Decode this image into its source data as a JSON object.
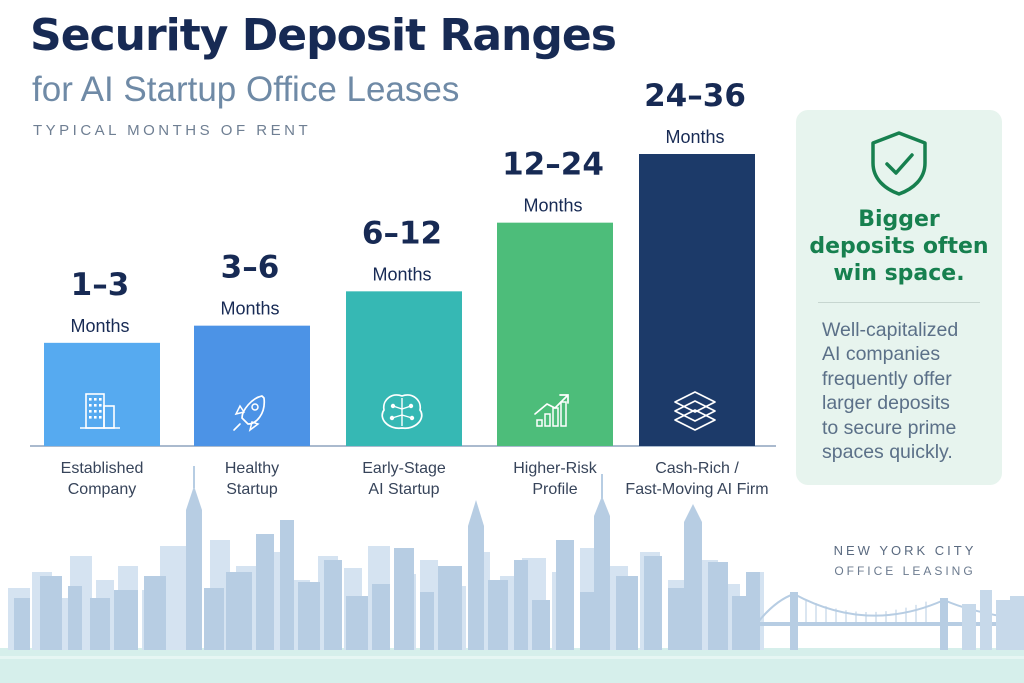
{
  "header": {
    "title": "Security Deposit Ranges",
    "subtitle": "for AI Startup Office Leases",
    "eyebrow": "TYPICAL MONTHS OF RENT"
  },
  "chart_data": {
    "type": "bar",
    "categories": [
      "Established Company",
      "Healthy Startup",
      "Early-Stage AI Startup",
      "Higher-Risk Profile",
      "Cash-Rich / Fast-Moving AI Firm"
    ],
    "category_lines": [
      [
        "Established",
        "Company"
      ],
      [
        "Healthy",
        "Startup"
      ],
      [
        "Early-Stage",
        "AI Startup"
      ],
      [
        "Higher-Risk",
        "Profile"
      ],
      [
        "Cash-Rich /",
        "Fast-Moving AI Firm"
      ]
    ],
    "range_labels": [
      "1–3",
      "3–6",
      "6–12",
      "12–24",
      "24–36"
    ],
    "unit_label": "Months",
    "ranges": [
      [
        1,
        3
      ],
      [
        3,
        6
      ],
      [
        6,
        12
      ],
      [
        12,
        24
      ],
      [
        24,
        36
      ]
    ],
    "colors": [
      "#56aaf0",
      "#4c93e6",
      "#36b8b4",
      "#4dbd7a",
      "#1c3a69"
    ],
    "icons": [
      "office-building-icon",
      "rocket-icon",
      "brain-circuit-icon",
      "growth-chart-icon",
      "stacked-layers-icon"
    ],
    "grid": false,
    "legend": "none"
  },
  "callout": {
    "icon": "shield-check-icon",
    "headline_lines": [
      "Bigger",
      "deposits often",
      "win space."
    ],
    "body_lines": [
      "Well-capitalized",
      "AI companies",
      "frequently offer",
      "larger deposits",
      "to secure prime",
      "spaces quickly."
    ],
    "accent_color": "#17804f",
    "background_color": "#e7f4ee"
  },
  "branding": {
    "line1": "NEW YORK CITY",
    "line2": "OFFICE LEASING"
  }
}
